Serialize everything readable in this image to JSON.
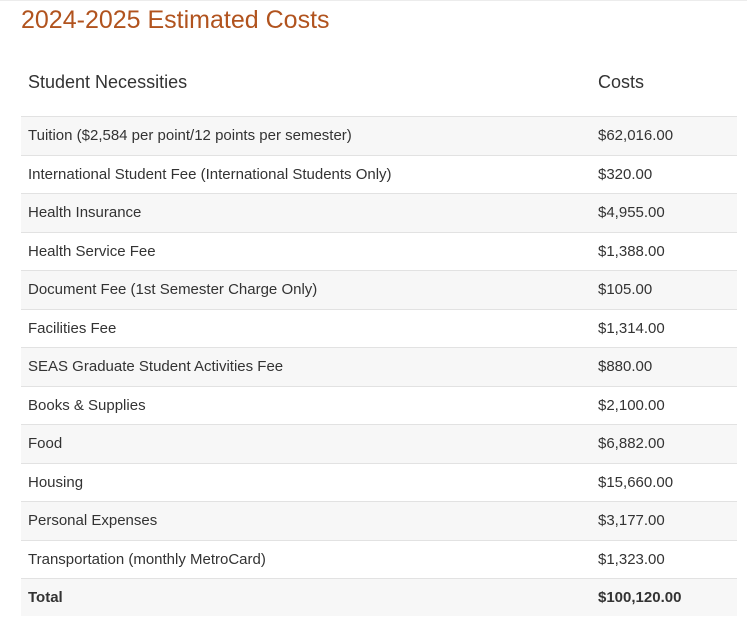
{
  "page": {
    "title": "2024-2025 Estimated Costs"
  },
  "table": {
    "headers": [
      "Student Necessities",
      "Costs"
    ],
    "rows": [
      {
        "item": "Tuition ($2,584 per point/12 points per semester)",
        "cost": "$62,016.00"
      },
      {
        "item": "International Student Fee (International Students Only)",
        "cost": "$320.00"
      },
      {
        "item": "Health Insurance",
        "cost": "$4,955.00"
      },
      {
        "item": "Health Service Fee",
        "cost": "$1,388.00"
      },
      {
        "item": "Document Fee (1st Semester Charge Only)",
        "cost": "$105.00"
      },
      {
        "item": "Facilities Fee",
        "cost": "$1,314.00"
      },
      {
        "item": "SEAS Graduate Student Activities Fee",
        "cost": "$880.00"
      },
      {
        "item": "Books & Supplies",
        "cost": "$2,100.00"
      },
      {
        "item": "Food",
        "cost": "$6,882.00"
      },
      {
        "item": "Housing",
        "cost": "$15,660.00"
      },
      {
        "item": "Personal Expenses",
        "cost": "$3,177.00"
      },
      {
        "item": "Transportation (monthly MetroCard)",
        "cost": "$1,323.00"
      }
    ],
    "total": {
      "label": "Total",
      "cost": "$100,120.00"
    }
  },
  "colors": {
    "title": "#b1531e",
    "text": "#333333",
    "stripe": "#f7f7f7",
    "border": "#e2e2e2"
  }
}
